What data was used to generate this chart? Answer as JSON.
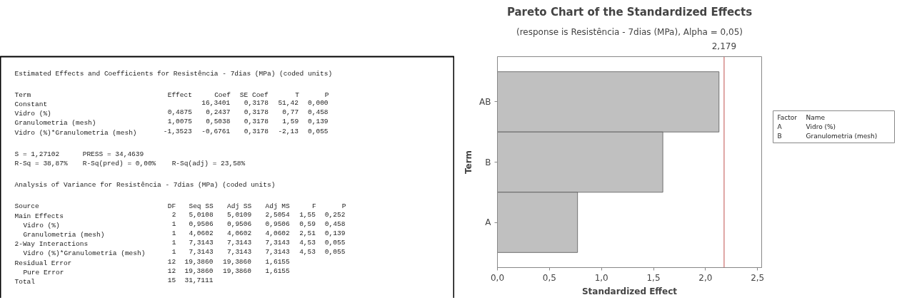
{
  "chart_data": [
    {
      "type": "other",
      "annotations": [
        "Estimated Effects and Coefficients for Resistência - 7dias (MPa) (coded units)",
        "Term                                Effect     Coef  SE Coef      T      P\nConstant                                    16,3401   0,3178  51,42  0,000\nVidro (%)                           0,4875   0,2437   0,3178   0,77  0,458\nGranulometria (mesh)                1,0075   0,5038   0,3178   1,59  0,139\nVidro (%)*Granulometria (mesh)     -1,3523  -0,6761   0,3178  -2,13  0,055",
        "S = 1,27102     PRESS = 34,4639\nR-Sq = 38,87%   R-Sq(pred) = 0,00%   R-Sq(adj) = 23,58%",
        "Analysis of Variance for Resistência - 7dias (MPa) (coded units)",
        "Source                              DF   Seq SS   Adj SS   Adj MS     F      P\nMain Effects                         2   5,0108   5,0109   2,5054  1,55  0,252\n  Vidro (%)                          1   0,9506   0,9506   0,9506  0,59  0,458\n  Granulometria (mesh)               1   4,0602   4,0602   4,0602  2,51  0,139\n2-Way Interactions                   1   7,3143   7,3143   7,3143  4,53  0,055\n  Vidro (%)*Granulometria (mesh)     1   7,3143   7,3143   7,3143  4,53  0,055\nResidual Error                      12  19,3860  19,3860   1,6155\n  Pure Error                        12  19,3860  19,3860   1,6155\nTotal                               15  31,7111"
      ]
    },
    {
      "type": "bar",
      "orientation": "horizontal",
      "title": "Pareto Chart of the Standardized Effects",
      "subtitle": "(response is Resistência - 7dias (MPa), Alpha = 0,05)",
      "xlabel": "Standardized Effect",
      "ylabel": "Term",
      "categories": [
        "AB",
        "B",
        "A"
      ],
      "values": [
        2.13,
        1.59,
        0.77
      ],
      "color": "#c0c0c0",
      "xlim": [
        0,
        2.54
      ],
      "xticks": [
        {
          "value": 0,
          "label": "0,0"
        },
        {
          "value": 0.5,
          "label": "0,5"
        },
        {
          "value": 1,
          "label": "1,0"
        },
        {
          "value": 1.5,
          "label": "1,5"
        },
        {
          "value": 2,
          "label": "2,0"
        },
        {
          "value": 2.5,
          "label": "2,5"
        }
      ],
      "ref_lines": [
        {
          "axis": "x",
          "value": 2.179,
          "label": "2,179",
          "color": "#c0504d"
        }
      ],
      "grid": false,
      "annotations": [
        "Factor  Name\nA       Vidro (%)\nB       Granulometria (mesh)"
      ]
    }
  ]
}
